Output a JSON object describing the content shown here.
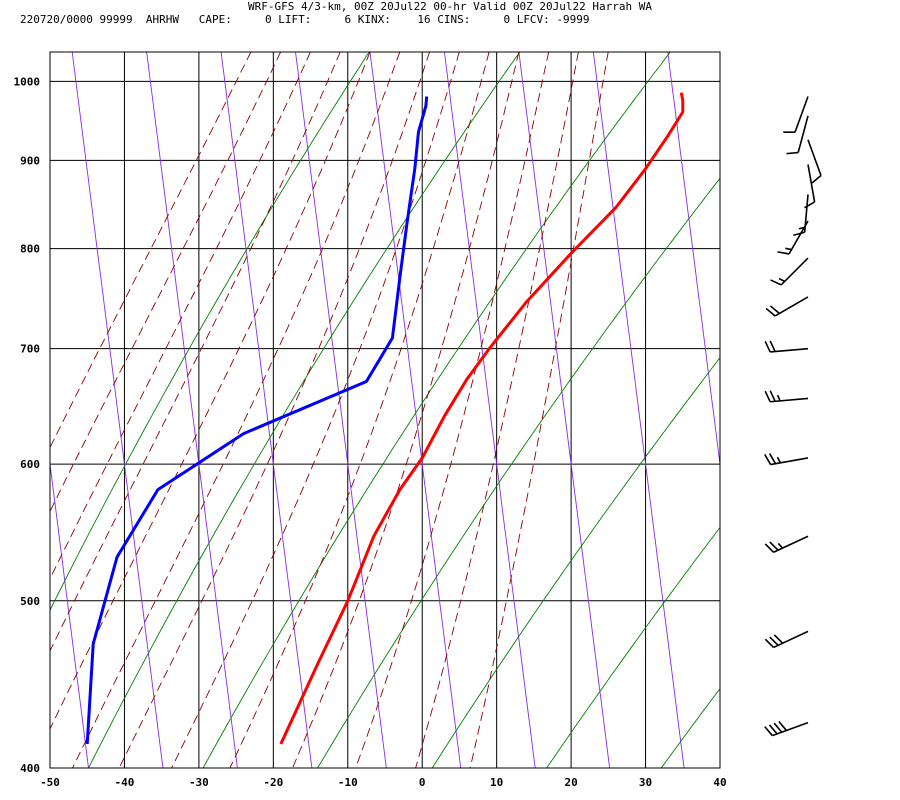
{
  "header": {
    "title_line": "WRF-GFS 4/3-km, 00Z 20Jul22 00-hr Valid 00Z 20Jul22 Harrah WA",
    "stats_line": "220720/0000 99999  AHRHW   CAPE:     0 LIFT:     6 KINX:    16 CINS:     0 LFCV: -9999"
  },
  "chart_data": {
    "type": "line",
    "chart_kind": "skew-T log-P sounding",
    "xlim": [
      -50,
      40
    ],
    "ylim": [
      1040,
      400
    ],
    "y_scale": "log",
    "x_ticks": [
      "-50",
      "-40",
      "-30",
      "-20",
      "-10",
      "0",
      "10",
      "20",
      "30",
      "40"
    ],
    "x_tick_values": [
      -50,
      -40,
      -30,
      -20,
      -10,
      0,
      10,
      20,
      30,
      40
    ],
    "y_ticks": [
      "400",
      "500",
      "600",
      "700",
      "800",
      "900",
      "1000"
    ],
    "y_tick_values": [
      400,
      500,
      600,
      700,
      800,
      900,
      1000
    ],
    "grid": true,
    "colors": {
      "temperature": "#ff0000",
      "dewpoint": "#0000ff",
      "dry_adiabat": "#008000",
      "moist_adiabat": "#8b0000",
      "isotherm_skewed": "#8a2be2",
      "grid": "#000000"
    },
    "series": [
      {
        "key": "temperature",
        "points": [
          [
            -19,
            413
          ],
          [
            -14,
            460
          ],
          [
            -10,
            500
          ],
          [
            -6.5,
            545
          ],
          [
            -3,
            580
          ],
          [
            0,
            605
          ],
          [
            3,
            640
          ],
          [
            6,
            672
          ],
          [
            9,
            700
          ],
          [
            14,
            745
          ],
          [
            20,
            795
          ],
          [
            26,
            845
          ],
          [
            30,
            890
          ],
          [
            33,
            930
          ],
          [
            35,
            960
          ],
          [
            35,
            975
          ],
          [
            34.8,
            985
          ]
        ]
      },
      {
        "key": "dewpoint",
        "points": [
          [
            -45,
            413
          ],
          [
            -44.2,
            472
          ],
          [
            -41,
            530
          ],
          [
            -35.5,
            580
          ],
          [
            -24,
            625
          ],
          [
            -7.5,
            670
          ],
          [
            -4,
            710
          ],
          [
            -3,
            770
          ],
          [
            -2,
            830
          ],
          [
            -1,
            890
          ],
          [
            -0.5,
            935
          ],
          [
            0.5,
            968
          ],
          [
            0.6,
            980
          ]
        ]
      }
    ],
    "dry_adiabat_thetas_K": [
      270,
      290,
      310,
      330,
      350,
      370,
      390,
      410,
      430
    ],
    "moist_adiabat_start_C": [
      -16,
      -12,
      -8,
      -4,
      0,
      4,
      8,
      12,
      16,
      20,
      24,
      28,
      32
    ],
    "skewed_isotherms_C": [
      -50,
      -40,
      -30,
      -20,
      -10,
      0,
      10,
      20,
      30,
      40,
      50,
      60
    ],
    "wind_barbs": [
      {
        "p": 425,
        "dir_deg": 250,
        "speed_kt": 40
      },
      {
        "p": 480,
        "dir_deg": 245,
        "speed_kt": 30
      },
      {
        "p": 545,
        "dir_deg": 245,
        "speed_kt": 25
      },
      {
        "p": 605,
        "dir_deg": 260,
        "speed_kt": 25
      },
      {
        "p": 655,
        "dir_deg": 265,
        "speed_kt": 25
      },
      {
        "p": 700,
        "dir_deg": 265,
        "speed_kt": 20
      },
      {
        "p": 750,
        "dir_deg": 240,
        "speed_kt": 20
      },
      {
        "p": 790,
        "dir_deg": 225,
        "speed_kt": 15
      },
      {
        "p": 830,
        "dir_deg": 210,
        "speed_kt": 15
      },
      {
        "p": 860,
        "dir_deg": 185,
        "speed_kt": 15
      },
      {
        "p": 895,
        "dir_deg": 170,
        "speed_kt": 10
      },
      {
        "p": 925,
        "dir_deg": 160,
        "speed_kt": 10
      },
      {
        "p": 955,
        "dir_deg": 195,
        "speed_kt": 10
      },
      {
        "p": 980,
        "dir_deg": 200,
        "speed_kt": 10
      }
    ]
  }
}
